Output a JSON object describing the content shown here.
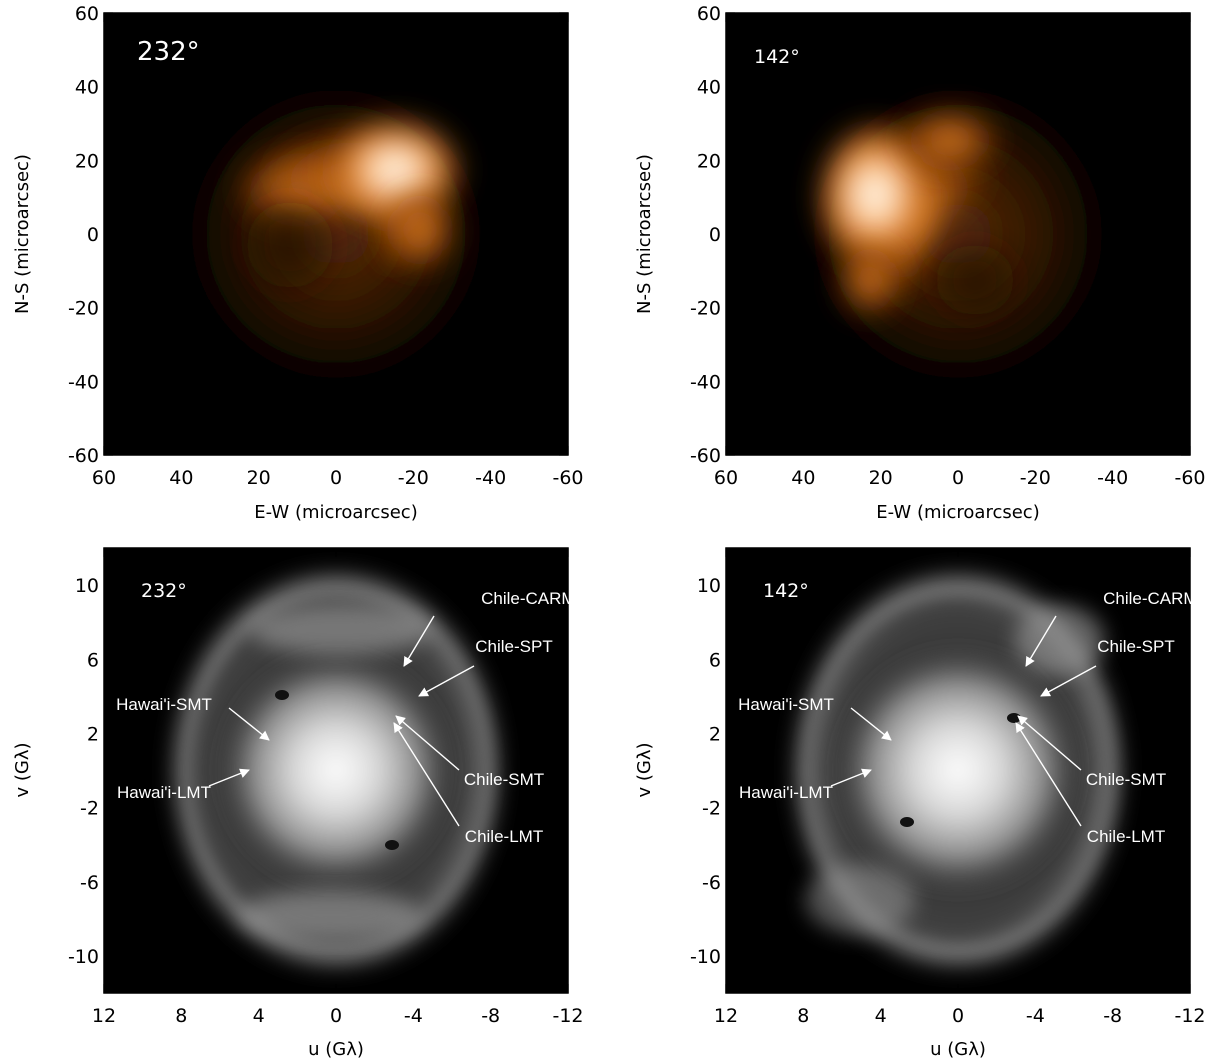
{
  "chart_data": [
    {
      "type": "heatmap",
      "panel": "top-left",
      "annotation": "232°",
      "xlabel": "E-W (microarcsec)",
      "ylabel": "N-S (microarcsec)",
      "xlim": [
        60,
        -60
      ],
      "ylim": [
        -60,
        60
      ],
      "xticks": [
        "60",
        "40",
        "20",
        "0",
        "-20",
        "-40",
        "-60"
      ],
      "yticks": [
        "60",
        "40",
        "20",
        "0",
        "-20",
        "-40",
        "-60"
      ],
      "colormap": "black-orange-white",
      "colors": {
        "low": "#000000",
        "mid": "#e07a1e",
        "high": "#ffffff"
      }
    },
    {
      "type": "heatmap",
      "panel": "top-right",
      "annotation": "142°",
      "xlabel": "E-W (microarcsec)",
      "ylabel": "N-S (microarcsec)",
      "xlim": [
        60,
        -60
      ],
      "ylim": [
        -60,
        60
      ],
      "xticks": [
        "60",
        "40",
        "20",
        "0",
        "-20",
        "-40",
        "-60"
      ],
      "yticks": [
        "60",
        "40",
        "20",
        "0",
        "-20",
        "-40",
        "-60"
      ],
      "colormap": "black-orange-white",
      "colors": {
        "low": "#000000",
        "mid": "#e07a1e",
        "high": "#ffffff"
      }
    },
    {
      "type": "heatmap",
      "panel": "bottom-left",
      "annotation": "232°",
      "xlabel": "u (Gλ)",
      "ylabel": "v (Gλ)",
      "xlim": [
        12,
        -12
      ],
      "ylim": [
        -12,
        12
      ],
      "xticks": [
        "12",
        "8",
        "4",
        "0",
        "-4",
        "-8",
        "-12"
      ],
      "yticks": [
        "10",
        "6",
        "2",
        "-2",
        "-6",
        "-10"
      ],
      "colormap": "grayscale",
      "track_color": "#d41c1c",
      "baseline_labels": [
        "Chile-CARMA",
        "Chile-SPT",
        "Hawai'i-SMT",
        "Hawai'i-LMT",
        "Chile-SMT",
        "Chile-LMT"
      ]
    },
    {
      "type": "heatmap",
      "panel": "bottom-right",
      "annotation": "142°",
      "xlabel": "u (Gλ)",
      "ylabel": "v (Gλ)",
      "xlim": [
        12,
        -12
      ],
      "ylim": [
        -12,
        12
      ],
      "xticks": [
        "12",
        "8",
        "4",
        "0",
        "-4",
        "-8",
        "-12"
      ],
      "yticks": [
        "10",
        "6",
        "2",
        "-2",
        "-6",
        "-10"
      ],
      "colormap": "grayscale",
      "track_color": "#d41c1c",
      "baseline_labels": [
        "Chile-CARMA",
        "Chile-SPT",
        "Hawai'i-SMT",
        "Hawai'i-LMT",
        "Chile-SMT",
        "Chile-LMT"
      ]
    }
  ]
}
